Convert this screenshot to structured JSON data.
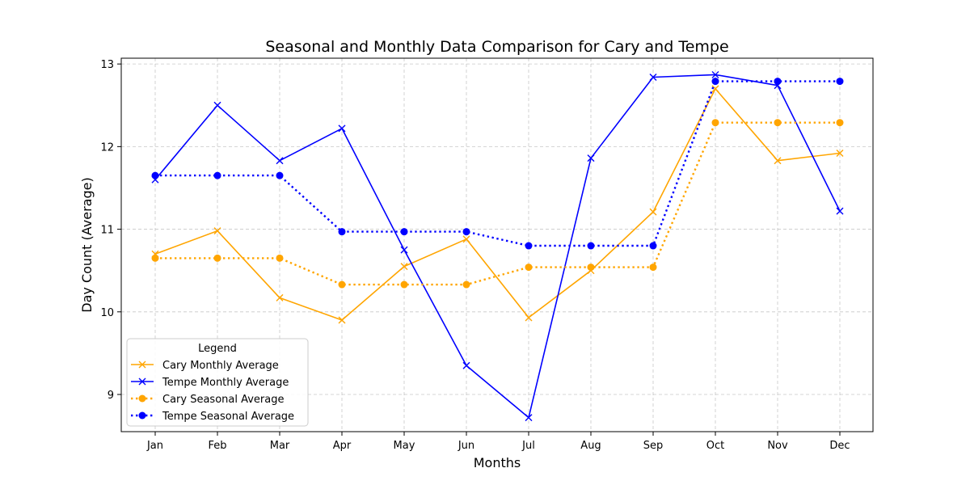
{
  "chart_data": {
    "type": "line",
    "title": "Seasonal and Monthly Data Comparison for Cary and Tempe",
    "xlabel": "Months",
    "ylabel": "Day Count (Average)",
    "categories": [
      "Jan",
      "Feb",
      "Mar",
      "Apr",
      "May",
      "Jun",
      "Jul",
      "Aug",
      "Sep",
      "Oct",
      "Nov",
      "Dec"
    ],
    "ylim": [
      8.55,
      13.07
    ],
    "yticks": [
      9,
      10,
      11,
      12,
      13
    ],
    "grid": true,
    "legend": {
      "title": "Legend",
      "placement": "lower-left"
    },
    "series": [
      {
        "name": "Cary Monthly Average",
        "color": "#ffa500",
        "line_style": "solid",
        "marker": "x",
        "values": [
          10.7,
          10.98,
          10.17,
          9.9,
          10.55,
          10.88,
          9.93,
          10.5,
          11.21,
          12.7,
          11.83,
          11.92
        ]
      },
      {
        "name": "Tempe Monthly Average",
        "color": "#0000ff",
        "line_style": "solid",
        "marker": "x",
        "values": [
          11.6,
          12.5,
          11.83,
          12.22,
          10.75,
          9.35,
          8.72,
          11.86,
          12.84,
          12.87,
          12.74,
          11.22
        ]
      },
      {
        "name": "Cary Seasonal Average",
        "color": "#ffa500",
        "line_style": "dotted",
        "marker": "o",
        "values": [
          10.65,
          10.65,
          10.65,
          10.33,
          10.33,
          10.33,
          10.54,
          10.54,
          10.54,
          12.29,
          12.29,
          12.29
        ]
      },
      {
        "name": "Tempe Seasonal Average",
        "color": "#0000ff",
        "line_style": "dotted",
        "marker": "o",
        "values": [
          11.65,
          11.65,
          11.65,
          10.97,
          10.97,
          10.97,
          10.8,
          10.8,
          10.8,
          12.79,
          12.79,
          12.79
        ]
      }
    ]
  }
}
